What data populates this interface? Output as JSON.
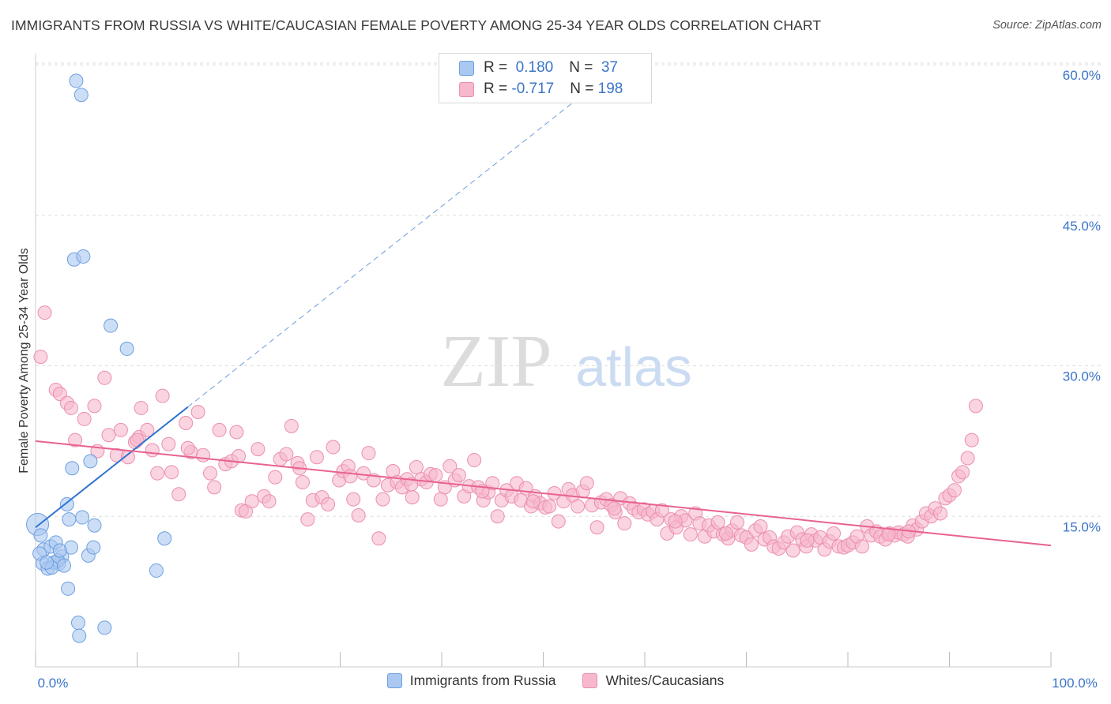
{
  "title": "IMMIGRANTS FROM RUSSIA VS WHITE/CAUCASIAN FEMALE POVERTY AMONG 25-34 YEAR OLDS CORRELATION CHART",
  "source": "Source: ZipAtlas.com",
  "watermark": {
    "zip": "ZIP",
    "atlas": "atlas"
  },
  "colors": {
    "blue_fill": "#aac8f0",
    "blue_stroke": "#6d9fe0",
    "blue_line": "#2f74d0",
    "pink_fill": "#f7b8cc",
    "pink_stroke": "#eb8fae",
    "pink_line": "#e8628f",
    "value_text": "#3b74c9",
    "grid": "#dddddd"
  },
  "stats": [
    {
      "r_label": "R = ",
      "r_value": " 0.180",
      "n_label": "N = ",
      "n_value": " 37"
    },
    {
      "r_label": "R = ",
      "r_value": "-0.717",
      "n_label": "N = ",
      "n_value": "198"
    }
  ],
  "legend": [
    "Immigrants from Russia",
    "Whites/Caucasians"
  ],
  "chart_data": {
    "type": "scatter",
    "title": "IMMIGRANTS FROM RUSSIA VS WHITE/CAUCASIAN FEMALE POVERTY AMONG 25-34 YEAR OLDS CORRELATION CHART",
    "xlabel": "",
    "ylabel": "Female Poverty Among 25-34 Year Olds",
    "xlim": [
      0,
      100
    ],
    "ylim": [
      0,
      61.5
    ],
    "x_ticks": [
      0,
      10,
      20,
      30,
      40,
      50,
      60,
      70,
      80,
      90,
      100
    ],
    "x_tick_labels": {
      "0": "0.0%",
      "100": "100.0%"
    },
    "y_ticks": [
      15,
      30,
      45,
      60
    ],
    "y_tick_labels": [
      "15.0%",
      "30.0%",
      "45.0%",
      "60.0%"
    ],
    "grid": true,
    "legend_position": "bottom",
    "series": [
      {
        "name": "Immigrants from Russia",
        "color": "#aac8f0",
        "trend": {
          "x": [
            0,
            15
          ],
          "y": [
            13.9,
            25.9
          ],
          "dashed_extension_to": [
            57,
            59.5
          ]
        },
        "points": [
          [
            4.0,
            58.4
          ],
          [
            4.5,
            57.0
          ],
          [
            3.8,
            40.6
          ],
          [
            4.7,
            40.9
          ],
          [
            7.4,
            34.0
          ],
          [
            9.0,
            31.7
          ],
          [
            0.2,
            14.2
          ],
          [
            0.5,
            13.1
          ],
          [
            0.7,
            10.3
          ],
          [
            1.2,
            9.8
          ],
          [
            0.8,
            11.7
          ],
          [
            1.5,
            12.0
          ],
          [
            2.0,
            12.4
          ],
          [
            2.6,
            11.0
          ],
          [
            2.3,
            10.3
          ],
          [
            1.8,
            10.4
          ],
          [
            2.2,
            10.6
          ],
          [
            1.6,
            9.9
          ],
          [
            2.8,
            10.1
          ],
          [
            3.1,
            16.2
          ],
          [
            3.3,
            14.7
          ],
          [
            3.5,
            11.9
          ],
          [
            3.6,
            19.8
          ],
          [
            4.6,
            14.9
          ],
          [
            5.2,
            11.1
          ],
          [
            5.7,
            11.9
          ],
          [
            5.8,
            14.1
          ],
          [
            5.4,
            20.5
          ],
          [
            12.7,
            12.8
          ],
          [
            11.9,
            9.6
          ],
          [
            3.2,
            7.8
          ],
          [
            4.2,
            4.4
          ],
          [
            4.3,
            3.1
          ],
          [
            6.8,
            3.9
          ],
          [
            0.4,
            11.3
          ],
          [
            1.1,
            10.4
          ],
          [
            2.4,
            11.6
          ]
        ]
      },
      {
        "name": "Whites/Caucasians",
        "color": "#f7b8cc",
        "trend": {
          "x": [
            0,
            100
          ],
          "y": [
            22.5,
            12.1
          ]
        },
        "points": [
          [
            0.9,
            35.3
          ],
          [
            0.5,
            30.9
          ],
          [
            2.0,
            27.6
          ],
          [
            2.4,
            27.2
          ],
          [
            3.1,
            26.3
          ],
          [
            3.5,
            25.8
          ],
          [
            5.8,
            26.0
          ],
          [
            6.8,
            28.8
          ],
          [
            3.9,
            22.6
          ],
          [
            4.8,
            24.7
          ],
          [
            6.1,
            21.5
          ],
          [
            7.2,
            23.1
          ],
          [
            8.0,
            21.1
          ],
          [
            8.4,
            23.6
          ],
          [
            9.1,
            20.9
          ],
          [
            9.8,
            22.4
          ],
          [
            10.2,
            22.9
          ],
          [
            10.4,
            25.8
          ],
          [
            11.0,
            23.6
          ],
          [
            11.5,
            21.6
          ],
          [
            12.0,
            19.3
          ],
          [
            12.5,
            27.0
          ],
          [
            13.1,
            22.2
          ],
          [
            13.4,
            19.4
          ],
          [
            14.1,
            17.2
          ],
          [
            14.8,
            24.3
          ],
          [
            15.3,
            21.4
          ],
          [
            16.0,
            25.4
          ],
          [
            16.5,
            21.1
          ],
          [
            17.2,
            19.3
          ],
          [
            17.6,
            17.9
          ],
          [
            18.1,
            23.6
          ],
          [
            18.7,
            20.2
          ],
          [
            19.3,
            20.5
          ],
          [
            19.8,
            23.4
          ],
          [
            20.3,
            15.6
          ],
          [
            20.7,
            15.5
          ],
          [
            21.3,
            16.5
          ],
          [
            21.9,
            21.7
          ],
          [
            22.5,
            17.0
          ],
          [
            23.0,
            16.5
          ],
          [
            23.6,
            18.9
          ],
          [
            24.1,
            20.7
          ],
          [
            24.7,
            21.2
          ],
          [
            25.2,
            24.0
          ],
          [
            25.8,
            20.3
          ],
          [
            26.3,
            18.4
          ],
          [
            26.8,
            14.7
          ],
          [
            27.3,
            16.6
          ],
          [
            27.7,
            20.9
          ],
          [
            28.2,
            16.9
          ],
          [
            28.8,
            16.2
          ],
          [
            29.3,
            21.9
          ],
          [
            29.9,
            18.6
          ],
          [
            30.3,
            19.5
          ],
          [
            30.8,
            20.0
          ],
          [
            31.3,
            16.7
          ],
          [
            31.8,
            15.1
          ],
          [
            32.3,
            19.3
          ],
          [
            32.8,
            21.3
          ],
          [
            33.3,
            18.6
          ],
          [
            33.8,
            12.8
          ],
          [
            34.2,
            16.7
          ],
          [
            34.7,
            18.1
          ],
          [
            35.2,
            19.5
          ],
          [
            35.6,
            18.4
          ],
          [
            36.1,
            17.9
          ],
          [
            36.6,
            18.7
          ],
          [
            37.1,
            16.9
          ],
          [
            37.5,
            19.9
          ],
          [
            38.0,
            18.7
          ],
          [
            38.5,
            18.4
          ],
          [
            38.9,
            19.2
          ],
          [
            39.4,
            19.1
          ],
          [
            39.9,
            16.7
          ],
          [
            40.3,
            17.9
          ],
          [
            40.8,
            20.0
          ],
          [
            41.3,
            18.6
          ],
          [
            41.7,
            19.1
          ],
          [
            42.2,
            17.0
          ],
          [
            42.7,
            18.0
          ],
          [
            43.2,
            20.6
          ],
          [
            43.6,
            17.9
          ],
          [
            44.1,
            16.6
          ],
          [
            44.6,
            17.4
          ],
          [
            45.0,
            18.3
          ],
          [
            45.5,
            15.0
          ],
          [
            45.9,
            16.6
          ],
          [
            46.4,
            17.6
          ],
          [
            46.9,
            17.0
          ],
          [
            47.4,
            18.3
          ],
          [
            47.8,
            16.6
          ],
          [
            48.3,
            17.8
          ],
          [
            48.8,
            16.0
          ],
          [
            49.2,
            17.0
          ],
          [
            49.7,
            16.3
          ],
          [
            50.2,
            15.9
          ],
          [
            50.6,
            16.0
          ],
          [
            51.1,
            17.3
          ],
          [
            51.5,
            14.5
          ],
          [
            52.0,
            16.5
          ],
          [
            52.5,
            17.7
          ],
          [
            52.9,
            17.1
          ],
          [
            53.4,
            16.0
          ],
          [
            53.9,
            17.5
          ],
          [
            54.3,
            18.3
          ],
          [
            54.8,
            16.1
          ],
          [
            55.3,
            13.9
          ],
          [
            55.7,
            16.4
          ],
          [
            56.2,
            16.7
          ],
          [
            56.7,
            16.1
          ],
          [
            57.1,
            15.4
          ],
          [
            57.6,
            16.8
          ],
          [
            58.0,
            14.3
          ],
          [
            58.5,
            16.3
          ],
          [
            58.9,
            15.8
          ],
          [
            59.4,
            15.4
          ],
          [
            59.9,
            15.7
          ],
          [
            60.3,
            15.2
          ],
          [
            60.8,
            15.5
          ],
          [
            61.2,
            14.7
          ],
          [
            61.7,
            15.6
          ],
          [
            62.2,
            13.3
          ],
          [
            62.6,
            14.7
          ],
          [
            63.1,
            13.9
          ],
          [
            63.6,
            15.0
          ],
          [
            64.0,
            14.6
          ],
          [
            64.5,
            13.2
          ],
          [
            65.0,
            15.3
          ],
          [
            65.4,
            14.3
          ],
          [
            65.9,
            13.0
          ],
          [
            66.3,
            14.1
          ],
          [
            66.8,
            13.5
          ],
          [
            67.2,
            14.4
          ],
          [
            67.7,
            13.2
          ],
          [
            68.2,
            12.8
          ],
          [
            68.6,
            13.6
          ],
          [
            69.1,
            14.4
          ],
          [
            69.5,
            13.1
          ],
          [
            70.0,
            12.9
          ],
          [
            70.5,
            12.2
          ],
          [
            70.9,
            13.6
          ],
          [
            71.4,
            14.0
          ],
          [
            71.8,
            12.7
          ],
          [
            72.3,
            12.9
          ],
          [
            72.7,
            12.0
          ],
          [
            73.2,
            11.8
          ],
          [
            73.7,
            12.4
          ],
          [
            74.1,
            13.0
          ],
          [
            74.6,
            11.6
          ],
          [
            75.0,
            13.4
          ],
          [
            75.5,
            12.7
          ],
          [
            75.9,
            12.0
          ],
          [
            76.4,
            13.2
          ],
          [
            76.8,
            12.6
          ],
          [
            77.3,
            12.9
          ],
          [
            77.7,
            11.7
          ],
          [
            78.2,
            12.5
          ],
          [
            78.6,
            13.3
          ],
          [
            79.1,
            12.0
          ],
          [
            79.6,
            11.9
          ],
          [
            80.0,
            12.1
          ],
          [
            80.5,
            12.4
          ],
          [
            80.9,
            13.0
          ],
          [
            81.4,
            12.0
          ],
          [
            81.9,
            14.0
          ],
          [
            82.3,
            13.1
          ],
          [
            82.8,
            13.5
          ],
          [
            83.2,
            13.0
          ],
          [
            83.7,
            12.7
          ],
          [
            84.1,
            13.3
          ],
          [
            84.6,
            13.1
          ],
          [
            85.0,
            13.4
          ],
          [
            85.5,
            13.2
          ],
          [
            85.9,
            13.0
          ],
          [
            86.4,
            14.1
          ],
          [
            86.8,
            13.7
          ],
          [
            87.3,
            14.5
          ],
          [
            87.7,
            15.3
          ],
          [
            88.2,
            15.0
          ],
          [
            88.6,
            15.8
          ],
          [
            89.1,
            15.3
          ],
          [
            89.6,
            16.8
          ],
          [
            90.0,
            17.1
          ],
          [
            90.5,
            17.6
          ],
          [
            90.9,
            19.0
          ],
          [
            91.3,
            19.4
          ],
          [
            91.8,
            20.8
          ],
          [
            92.2,
            22.6
          ],
          [
            92.6,
            26.0
          ],
          [
            86.0,
            13.5
          ],
          [
            84.0,
            13.2
          ],
          [
            76.0,
            12.6
          ],
          [
            68.0,
            13.3
          ],
          [
            63.0,
            14.5
          ],
          [
            57.0,
            15.8
          ],
          [
            49.0,
            16.5
          ],
          [
            44.0,
            17.5
          ],
          [
            37.0,
            18.2
          ],
          [
            31.0,
            19.0
          ],
          [
            26.0,
            19.8
          ],
          [
            20.0,
            21.0
          ],
          [
            15.0,
            21.8
          ],
          [
            10.0,
            22.6
          ]
        ]
      }
    ]
  }
}
